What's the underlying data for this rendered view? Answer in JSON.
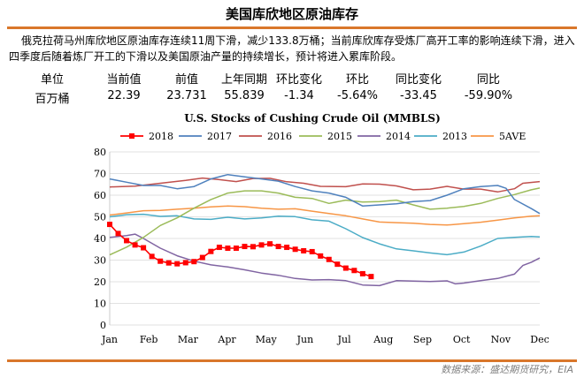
{
  "header": {
    "title": "美国库欣地区原油库存"
  },
  "description": "俄克拉荷马州库欣地区原油库存连续11周下滑，减少133.8万桶；当前库欣库存受炼厂高开工率的影响连续下滑，进入四季度后随着炼厂开工的下滑以及美国原油产量的持续增长，预计将进入累库阶段。",
  "stats": {
    "headers": [
      "单位",
      "当前值",
      "前值",
      "上年同期",
      "环比变化",
      "环比",
      "同比变化",
      "同比"
    ],
    "values": [
      "百万桶",
      "22.39",
      "23.731",
      "55.839",
      "-1.34",
      "-5.64%",
      "-33.45",
      "-59.90%"
    ]
  },
  "chart_data": {
    "type": "line",
    "title": "U.S. Stocks of Cushing Crude Oil (MMBLS)",
    "xlabel": "",
    "ylabel": "",
    "x_range": [
      1,
      52
    ],
    "ylim": [
      0,
      80
    ],
    "yticks": [
      0,
      10,
      20,
      30,
      40,
      50,
      60,
      70,
      80
    ],
    "month_labels": [
      "Jan",
      "Feb",
      "Mar",
      "Apr",
      "May",
      "Jun",
      "Jul",
      "Aug",
      "Sep",
      "Oct",
      "Nov",
      "Dec"
    ],
    "grid": true,
    "legend_position": "top",
    "series": [
      {
        "name": "2018",
        "color": "#ff0000",
        "marker": "square",
        "points": [
          [
            1,
            46.5
          ],
          [
            2,
            42.3
          ],
          [
            3,
            39
          ],
          [
            4,
            37
          ],
          [
            5,
            35.7
          ],
          [
            6,
            31.7
          ],
          [
            7,
            29.5
          ],
          [
            8,
            28.7
          ],
          [
            9,
            28.3
          ],
          [
            10,
            28.8
          ],
          [
            11,
            29.3
          ],
          [
            12,
            31.2
          ],
          [
            13,
            34
          ],
          [
            14,
            35.9
          ],
          [
            15,
            35.5
          ],
          [
            16,
            35.5
          ],
          [
            17,
            36.3
          ],
          [
            18,
            36.2
          ],
          [
            19,
            37
          ],
          [
            20,
            37.5
          ],
          [
            21,
            36.3
          ],
          [
            22,
            35.9
          ],
          [
            23,
            35
          ],
          [
            24,
            34.3
          ],
          [
            25,
            33.9
          ],
          [
            26,
            31.9
          ],
          [
            27,
            30.3
          ],
          [
            28,
            28.1
          ],
          [
            29,
            26.3
          ],
          [
            30,
            25.2
          ],
          [
            31,
            23.7
          ],
          [
            32,
            22.4
          ]
        ]
      },
      {
        "name": "2017",
        "color": "#4f81bd",
        "points": [
          [
            1,
            67.5
          ],
          [
            3,
            66
          ],
          [
            5,
            64.5
          ],
          [
            7,
            64.5
          ],
          [
            9,
            63
          ],
          [
            11,
            64
          ],
          [
            13,
            67.5
          ],
          [
            15,
            69.5
          ],
          [
            17,
            68.5
          ],
          [
            19,
            67.5
          ],
          [
            21,
            66.5
          ],
          [
            23,
            64
          ],
          [
            25,
            62
          ],
          [
            27,
            61
          ],
          [
            29,
            59
          ],
          [
            31,
            55
          ],
          [
            33,
            55.5
          ],
          [
            35,
            56
          ],
          [
            37,
            57
          ],
          [
            39,
            57.5
          ],
          [
            41,
            60
          ],
          [
            43,
            63
          ],
          [
            45,
            64
          ],
          [
            47,
            64.5
          ],
          [
            48,
            63.2
          ],
          [
            49,
            58
          ],
          [
            51,
            53.8
          ],
          [
            52,
            51.5
          ]
        ]
      },
      {
        "name": "2016",
        "color": "#c0504d",
        "points": [
          [
            1,
            63.8
          ],
          [
            4,
            64.2
          ],
          [
            7,
            65.5
          ],
          [
            10,
            66.8
          ],
          [
            12,
            67.9
          ],
          [
            14,
            67.2
          ],
          [
            16,
            66.3
          ],
          [
            18,
            67.7
          ],
          [
            20,
            67.8
          ],
          [
            22,
            66.2
          ],
          [
            24,
            65.5
          ],
          [
            26,
            64.1
          ],
          [
            29,
            63.9
          ],
          [
            31,
            65.2
          ],
          [
            33,
            65.1
          ],
          [
            35,
            64.3
          ],
          [
            37,
            62.5
          ],
          [
            39,
            62.8
          ],
          [
            41,
            64.1
          ],
          [
            43,
            62.8
          ],
          [
            45,
            62.8
          ],
          [
            47,
            61.5
          ],
          [
            49,
            63
          ],
          [
            50,
            65.5
          ],
          [
            52,
            66.3
          ]
        ]
      },
      {
        "name": "2015",
        "color": "#9bbb59",
        "points": [
          [
            1,
            32.4
          ],
          [
            3,
            36
          ],
          [
            5,
            40.5
          ],
          [
            7,
            46
          ],
          [
            9,
            49.5
          ],
          [
            11,
            54
          ],
          [
            13,
            58
          ],
          [
            15,
            61
          ],
          [
            17,
            62
          ],
          [
            19,
            62
          ],
          [
            21,
            61
          ],
          [
            23,
            59
          ],
          [
            25,
            58.5
          ],
          [
            27,
            56.2
          ],
          [
            29,
            57.7
          ],
          [
            31,
            56.8
          ],
          [
            33,
            57
          ],
          [
            35,
            57.7
          ],
          [
            37,
            55.5
          ],
          [
            39,
            53.5
          ],
          [
            41,
            54
          ],
          [
            43,
            54.8
          ],
          [
            45,
            56.2
          ],
          [
            47,
            58.5
          ],
          [
            49,
            60.3
          ],
          [
            51,
            62.5
          ],
          [
            52,
            63.3
          ]
        ]
      },
      {
        "name": "2014",
        "color": "#8064a2",
        "points": [
          [
            1,
            40.5
          ],
          [
            3,
            41.3
          ],
          [
            4,
            42
          ],
          [
            5,
            40
          ],
          [
            7,
            35.5
          ],
          [
            9,
            32
          ],
          [
            11,
            29.5
          ],
          [
            13,
            27.8
          ],
          [
            15,
            26.8
          ],
          [
            17,
            25.5
          ],
          [
            19,
            24
          ],
          [
            21,
            23
          ],
          [
            23,
            21.5
          ],
          [
            25,
            20.8
          ],
          [
            27,
            21
          ],
          [
            29,
            20.5
          ],
          [
            31,
            18.5
          ],
          [
            33,
            18.2
          ],
          [
            35,
            20.5
          ],
          [
            37,
            20.3
          ],
          [
            39,
            20.1
          ],
          [
            41,
            20.4
          ],
          [
            42,
            19
          ],
          [
            43,
            19.4
          ],
          [
            45,
            20.5
          ],
          [
            47,
            21.5
          ],
          [
            49,
            23.5
          ],
          [
            50,
            27.5
          ],
          [
            51,
            29
          ],
          [
            52,
            31
          ]
        ]
      },
      {
        "name": "2013",
        "color": "#4bacc6",
        "points": [
          [
            1,
            50
          ],
          [
            3,
            51
          ],
          [
            5,
            51.2
          ],
          [
            7,
            50.2
          ],
          [
            9,
            50.5
          ],
          [
            11,
            49
          ],
          [
            13,
            48.8
          ],
          [
            15,
            49.8
          ],
          [
            17,
            49
          ],
          [
            19,
            49.5
          ],
          [
            21,
            50.3
          ],
          [
            23,
            50.1
          ],
          [
            25,
            48.6
          ],
          [
            27,
            48
          ],
          [
            29,
            44.5
          ],
          [
            31,
            40.4
          ],
          [
            33,
            37.5
          ],
          [
            35,
            35.2
          ],
          [
            37,
            34.3
          ],
          [
            39,
            33.3
          ],
          [
            41,
            32.5
          ],
          [
            43,
            33.7
          ],
          [
            45,
            36.5
          ],
          [
            47,
            40
          ],
          [
            49,
            40.5
          ],
          [
            51,
            40.9
          ],
          [
            52,
            40.7
          ]
        ]
      },
      {
        "name": "5AVE",
        "color": "#f79646",
        "points": [
          [
            1,
            50.8
          ],
          [
            3,
            51.8
          ],
          [
            5,
            52.8
          ],
          [
            7,
            53
          ],
          [
            9,
            53.5
          ],
          [
            11,
            54
          ],
          [
            13,
            54.6
          ],
          [
            15,
            55
          ],
          [
            17,
            54.7
          ],
          [
            19,
            54
          ],
          [
            21,
            53.5
          ],
          [
            23,
            53.7
          ],
          [
            25,
            52.6
          ],
          [
            27,
            51.5
          ],
          [
            29,
            50.5
          ],
          [
            31,
            49
          ],
          [
            33,
            47.6
          ],
          [
            35,
            47.3
          ],
          [
            37,
            47
          ],
          [
            39,
            46.5
          ],
          [
            41,
            46.2
          ],
          [
            43,
            46.8
          ],
          [
            45,
            47.5
          ],
          [
            47,
            48.5
          ],
          [
            49,
            49.5
          ],
          [
            51,
            50.3
          ],
          [
            52,
            50.5
          ]
        ]
      }
    ]
  },
  "source": "数据来源：盛达期货研究，EIA"
}
